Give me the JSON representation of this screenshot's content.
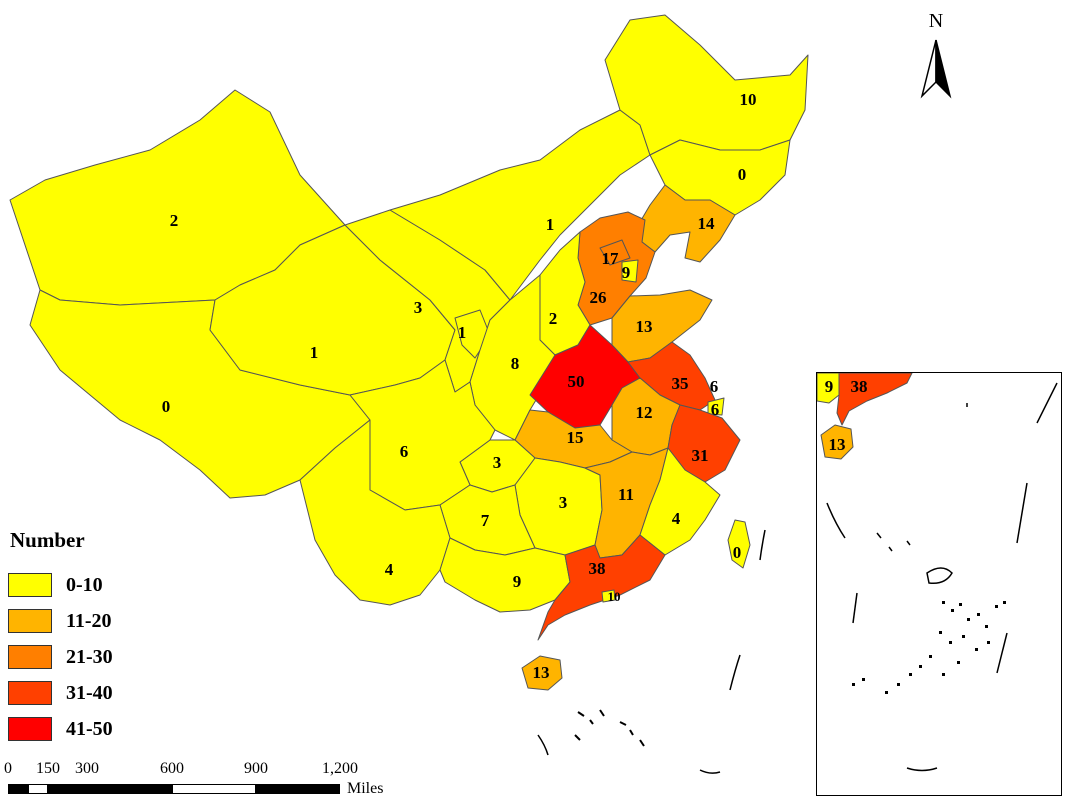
{
  "legend": {
    "title": "Number",
    "classes": [
      {
        "label": "0-10",
        "color": "#ffff00"
      },
      {
        "label": "11-20",
        "color": "#ffb400"
      },
      {
        "label": "21-30",
        "color": "#ff7f00"
      },
      {
        "label": "31-40",
        "color": "#ff4000"
      },
      {
        "label": "41-50",
        "color": "#ff0000"
      }
    ]
  },
  "north_arrow": {
    "letter": "N",
    "icon": "north-arrow-icon"
  },
  "scale_bar": {
    "ticks": [
      "0",
      "150",
      "300",
      "600",
      "900",
      "1,200"
    ],
    "unit": "Miles"
  },
  "regions": [
    {
      "value": "2"
    },
    {
      "value": "1"
    },
    {
      "value": "0"
    },
    {
      "value": "3"
    },
    {
      "value": "1"
    },
    {
      "value": "6"
    },
    {
      "value": "4"
    },
    {
      "value": "8"
    },
    {
      "value": "1"
    },
    {
      "value": "10"
    },
    {
      "value": "0"
    },
    {
      "value": "14"
    },
    {
      "value": "17"
    },
    {
      "value": "9"
    },
    {
      "value": "26"
    },
    {
      "value": "2"
    },
    {
      "value": "13"
    },
    {
      "value": "50"
    },
    {
      "value": "35"
    },
    {
      "value": "6"
    },
    {
      "value": "6"
    },
    {
      "value": "12"
    },
    {
      "value": "15"
    },
    {
      "value": "3"
    },
    {
      "value": "31"
    },
    {
      "value": "3"
    },
    {
      "value": "11"
    },
    {
      "value": "7"
    },
    {
      "value": "4"
    },
    {
      "value": "9"
    },
    {
      "value": "38"
    },
    {
      "value": "10"
    },
    {
      "value": "13"
    },
    {
      "value": "0"
    }
  ],
  "inset": {
    "labels": [
      {
        "value": "9"
      },
      {
        "value": "38"
      },
      {
        "value": "13"
      }
    ]
  }
}
